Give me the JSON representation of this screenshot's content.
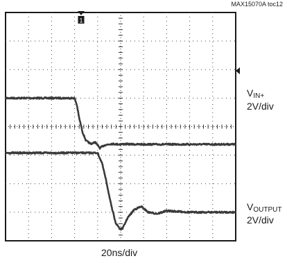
{
  "doc_id": "MAX15070A toc12",
  "chart_data": {
    "type": "line",
    "title": "",
    "x_scale": "20ns/div",
    "divisions": {
      "x": 10,
      "y": 8
    },
    "grid": true,
    "trigger_marker": "T",
    "channel1_marker": "1",
    "series": [
      {
        "label_main": "V",
        "label_sub": "IN+",
        "scale": "2V/div",
        "time_div": [
          0,
          1,
          2,
          3,
          3.1,
          3.2,
          3.35,
          3.5,
          3.7,
          3.9,
          4.1,
          4.3,
          4.6,
          4.9,
          5.2,
          5.6,
          6,
          7,
          8,
          9,
          10
        ],
        "level_div": [
          1,
          1,
          1,
          1,
          0.75,
          0.3,
          -0.2,
          -0.5,
          -0.6,
          -0.55,
          -0.75,
          -0.65,
          -0.6,
          -0.62,
          -0.61,
          -0.62,
          -0.62,
          -0.62,
          -0.62,
          -0.62,
          -0.62
        ]
      },
      {
        "label_main": "V",
        "label_sub": "OUTPUT",
        "scale": "2V/div",
        "time_div": [
          0,
          1,
          2,
          3,
          4,
          4.2,
          4.4,
          4.6,
          4.8,
          5.0,
          5.1,
          5.3,
          5.6,
          5.9,
          6.2,
          6.6,
          7,
          8,
          9,
          10
        ],
        "level_div": [
          -0.92,
          -0.92,
          -0.92,
          -0.92,
          -0.92,
          -1.3,
          -2.0,
          -2.8,
          -3.4,
          -3.6,
          -3.55,
          -3.2,
          -2.9,
          -2.8,
          -3.0,
          -3.05,
          -2.95,
          -3.0,
          -3.0,
          -3.0
        ]
      }
    ]
  }
}
